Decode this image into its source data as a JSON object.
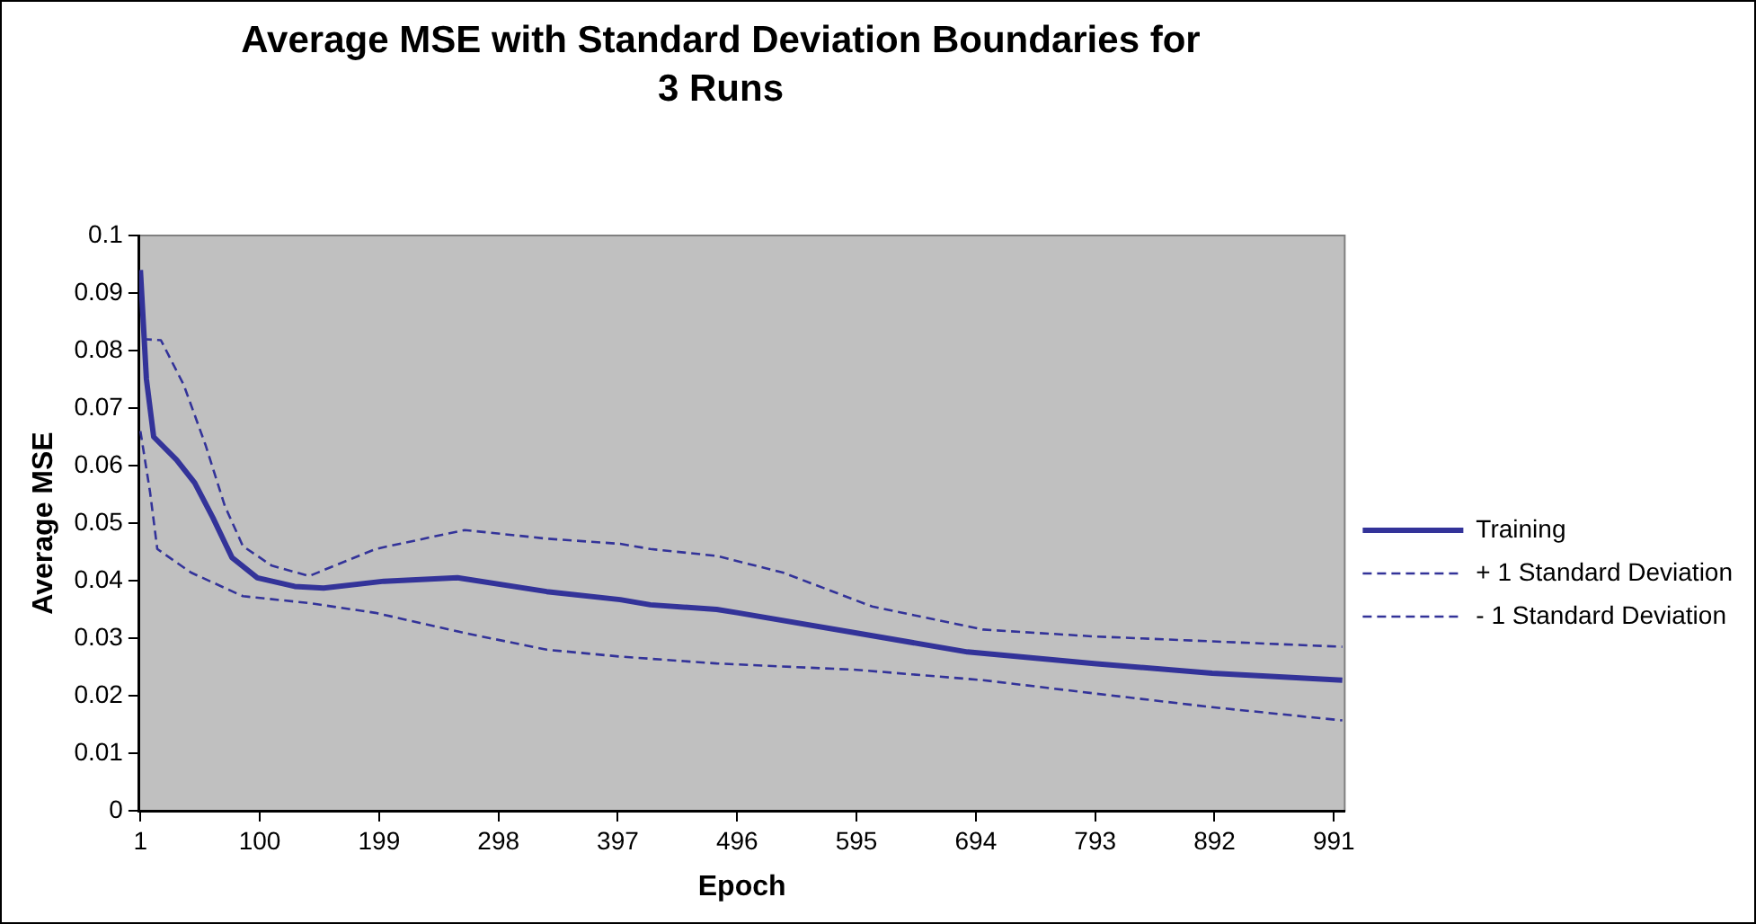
{
  "chart_data": {
    "type": "line",
    "title": "Average MSE with Standard Deviation Boundaries for 3 Runs",
    "xlabel": "Epoch",
    "ylabel": "Average MSE",
    "xlim": [
      0,
      1000
    ],
    "xticks": [
      1,
      100,
      199,
      298,
      397,
      496,
      595,
      694,
      793,
      892,
      991
    ],
    "ylim": [
      0,
      0.1
    ],
    "yticks": [
      0,
      0.01,
      0.02,
      0.03,
      0.04,
      0.05,
      0.06,
      0.07,
      0.08,
      0.09,
      0.1
    ],
    "grid": false,
    "legend": "right",
    "marker": "none",
    "series": [
      {
        "name": "Training",
        "color": "#333399",
        "line_style": "solid",
        "x": [
          1,
          6,
          12,
          31,
          46,
          61,
          77,
          98,
          129,
          153,
          203,
          264,
          338,
          399,
          424,
          479,
          497,
          595,
          687,
          792,
          890,
          998
        ],
        "values": [
          0.094,
          0.075,
          0.065,
          0.061,
          0.057,
          0.051,
          0.044,
          0.0405,
          0.039,
          0.0387,
          0.0399,
          0.0405,
          0.0381,
          0.0367,
          0.0358,
          0.035,
          0.0344,
          0.0309,
          0.0276,
          0.0256,
          0.0239,
          0.0227
        ]
      },
      {
        "name": "+ 1 Standard Deviation",
        "color": "#333399",
        "line_style": "dashed",
        "x": [
          3,
          18,
          37,
          55,
          71,
          86,
          110,
          141,
          196,
          270,
          338,
          399,
          424,
          479,
          534,
          608,
          700,
          792,
          998
        ],
        "values": [
          0.082,
          0.0818,
          0.074,
          0.0636,
          0.053,
          0.046,
          0.0426,
          0.0408,
          0.0455,
          0.0488,
          0.0473,
          0.0464,
          0.0455,
          0.0443,
          0.0414,
          0.0355,
          0.0315,
          0.0303,
          0.0285
        ]
      },
      {
        "name": "- 1 Standard Deviation",
        "color": "#333399",
        "line_style": "dashed",
        "x": [
          1,
          9,
          15,
          43,
          86,
          141,
          196,
          270,
          338,
          399,
          479,
          595,
          700,
          792,
          890,
          998
        ],
        "values": [
          0.066,
          0.0554,
          0.0455,
          0.0414,
          0.0373,
          0.0361,
          0.0344,
          0.0309,
          0.028,
          0.0268,
          0.0256,
          0.0245,
          0.0227,
          0.0204,
          0.018,
          0.0157
        ]
      }
    ]
  }
}
